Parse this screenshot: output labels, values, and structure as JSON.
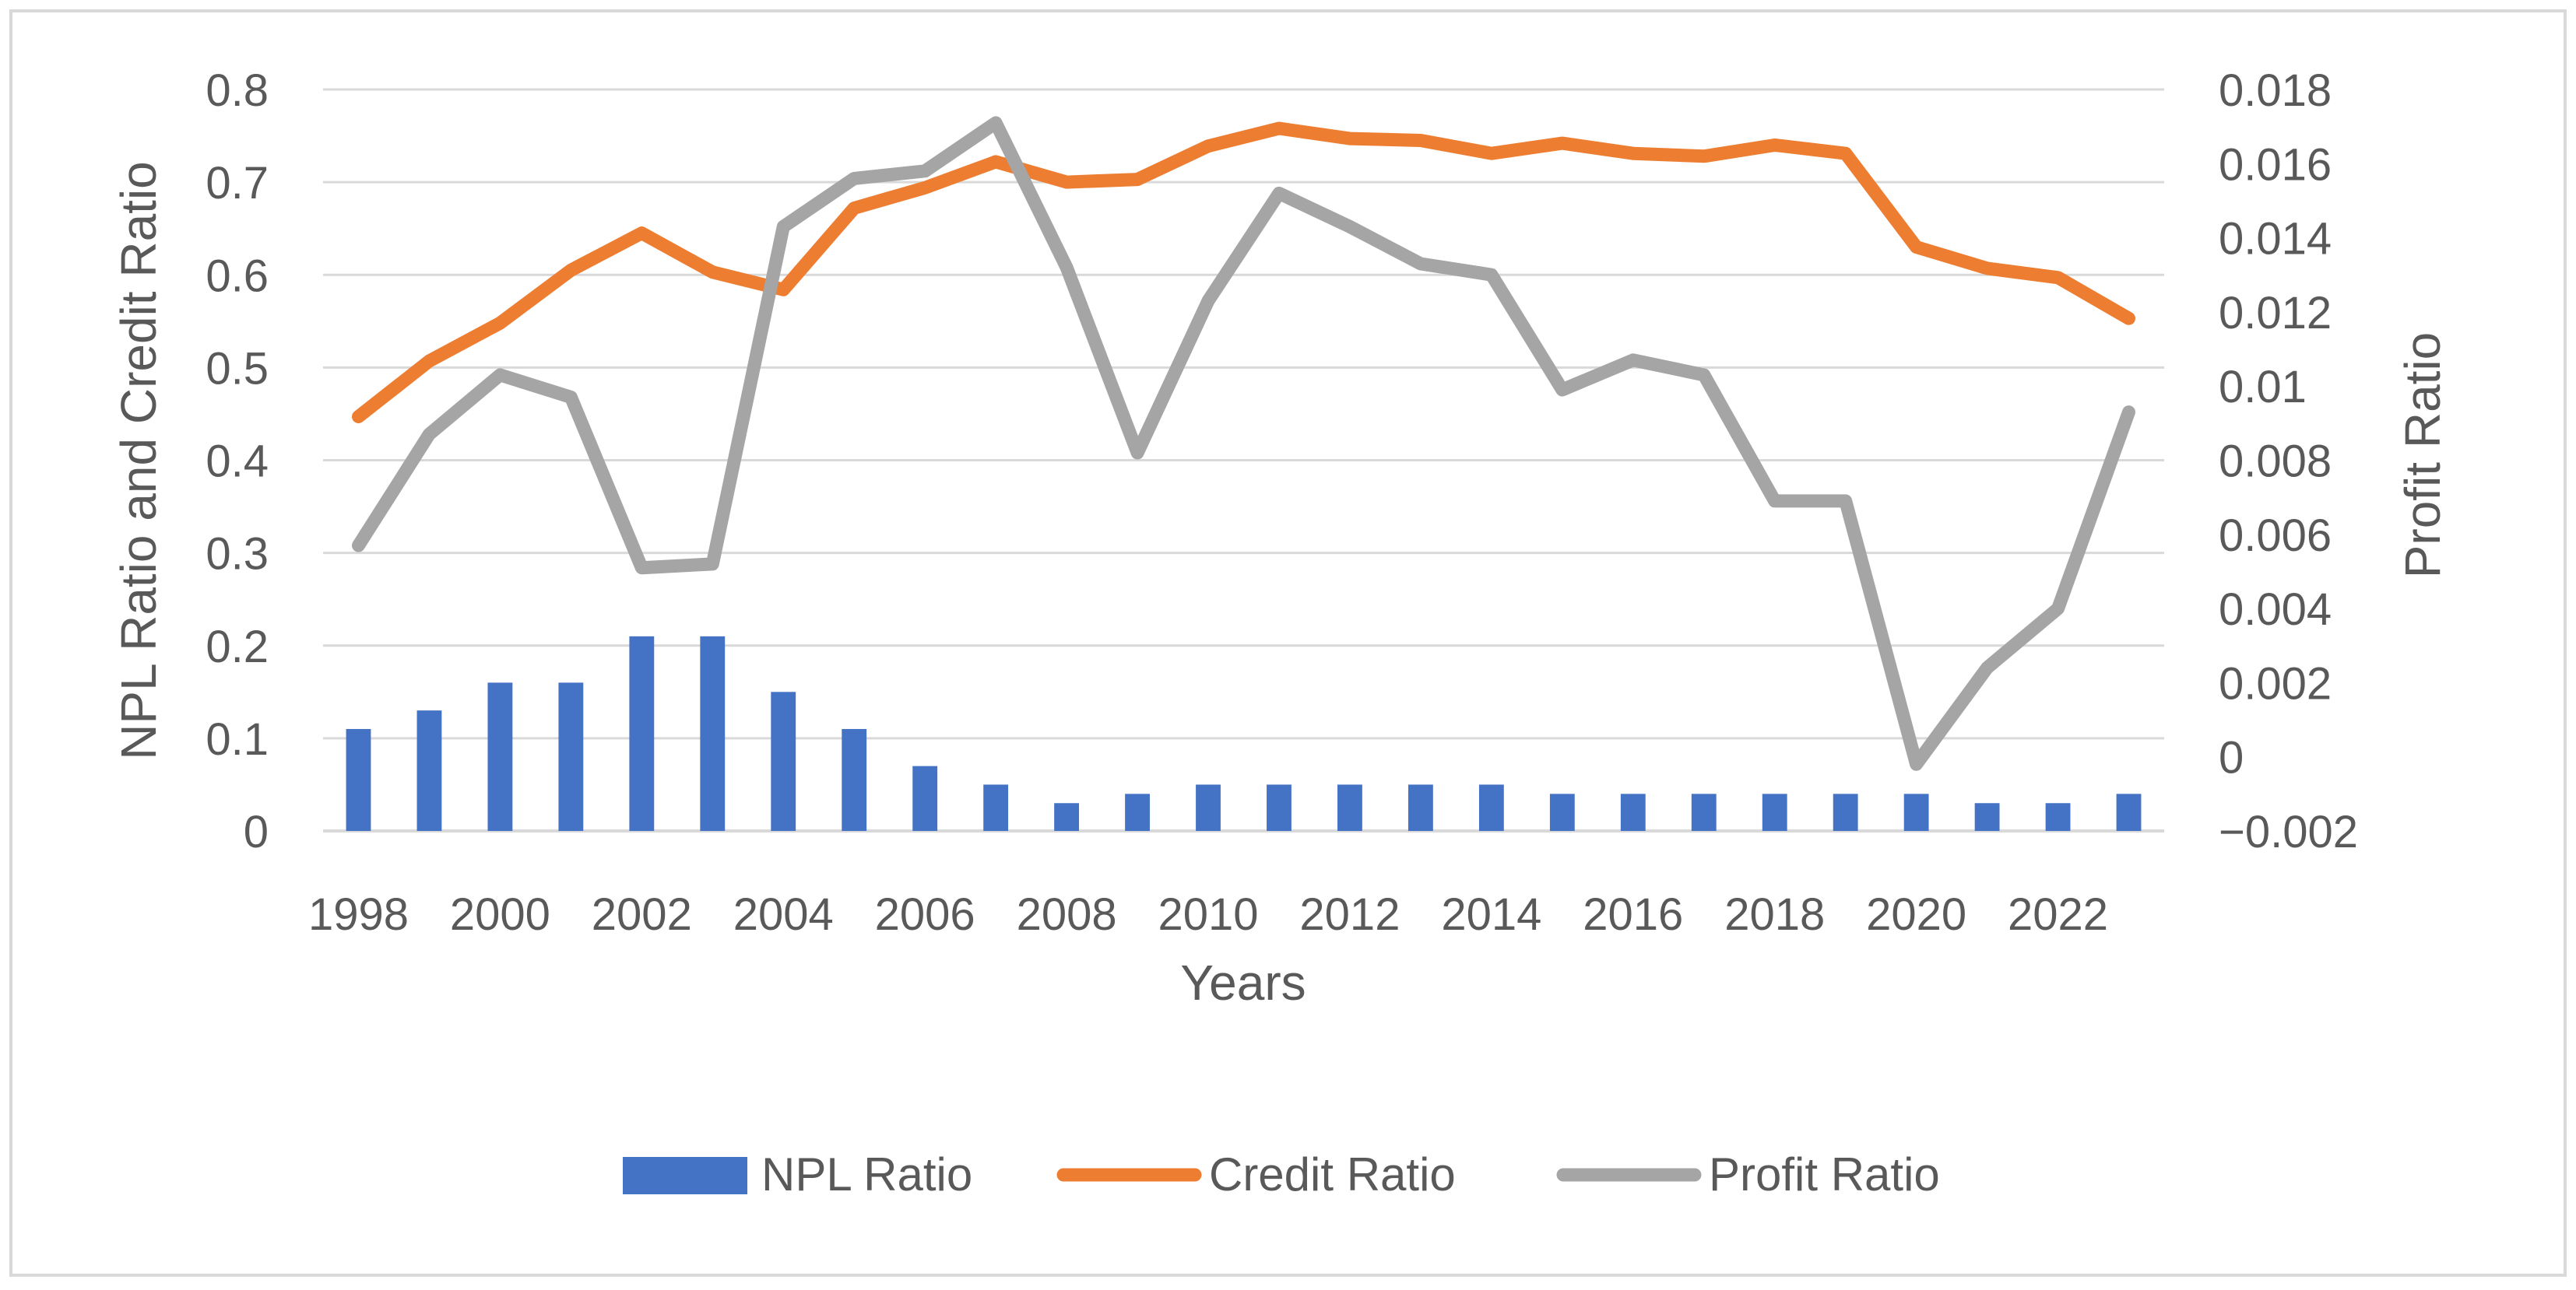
{
  "chart_data": {
    "type": "bar-line-combo",
    "title": "",
    "xlabel": "Years",
    "ylabel_left": "NPL Ratio and Credit Ratio",
    "ylabel_right": "Profit Ratio",
    "ylim_left": [
      0,
      0.8
    ],
    "ylim_right": [
      -0.002,
      0.018
    ],
    "yticks_left": [
      "0",
      "0.1",
      "0.2",
      "0.3",
      "0.4",
      "0.5",
      "0.6",
      "0.7",
      "0.8"
    ],
    "yticks_right": [
      "−0.002",
      "0",
      "0.002",
      "0.004",
      "0.006",
      "0.008",
      "0.01",
      "0.012",
      "0.014",
      "0.016",
      "0.018"
    ],
    "x": [
      1998,
      1999,
      2000,
      2001,
      2002,
      2003,
      2004,
      2005,
      2006,
      2007,
      2008,
      2009,
      2010,
      2011,
      2012,
      2013,
      2014,
      2015,
      2016,
      2017,
      2018,
      2019,
      2020,
      2021,
      2022,
      2023
    ],
    "xtick_labels": [
      "1998",
      "2000",
      "2002",
      "2004",
      "2006",
      "2008",
      "2010",
      "2012",
      "2014",
      "2016",
      "2018",
      "2020",
      "2022"
    ],
    "series": [
      {
        "name": "NPL Ratio",
        "kind": "bar",
        "axis": "left",
        "color": "#4472C4",
        "values": [
          0.11,
          0.13,
          0.16,
          0.16,
          0.21,
          0.21,
          0.15,
          0.11,
          0.07,
          0.05,
          0.03,
          0.04,
          0.05,
          0.05,
          0.05,
          0.05,
          0.05,
          0.04,
          0.04,
          0.04,
          0.04,
          0.04,
          0.04,
          0.03,
          0.03,
          0.04
        ]
      },
      {
        "name": "Credit Ratio",
        "kind": "line",
        "axis": "left",
        "color": "#ED7D31",
        "values": [
          0.447,
          0.507,
          0.548,
          0.605,
          0.645,
          0.603,
          0.584,
          0.672,
          0.694,
          0.722,
          0.7,
          0.703,
          0.739,
          0.758,
          0.747,
          0.745,
          0.731,
          0.742,
          0.731,
          0.728,
          0.74,
          0.731,
          0.63,
          0.607,
          0.597,
          0.553
        ]
      },
      {
        "name": "Profit Ratio",
        "kind": "line",
        "axis": "right",
        "color": "#A5A5A5",
        "values": [
          0.0057,
          0.0087,
          0.0103,
          0.0097,
          0.0051,
          0.0052,
          0.0143,
          0.0156,
          0.0158,
          0.0171,
          0.0132,
          0.0082,
          0.0123,
          0.0152,
          0.0143,
          0.0133,
          0.013,
          0.0099,
          0.0107,
          0.0103,
          0.0069,
          0.0069,
          -0.0002,
          0.0024,
          0.004,
          0.0093
        ]
      }
    ],
    "legend": [
      "NPL Ratio",
      "Credit Ratio",
      "Profit Ratio"
    ],
    "legend_position": "bottom",
    "grid": true
  }
}
